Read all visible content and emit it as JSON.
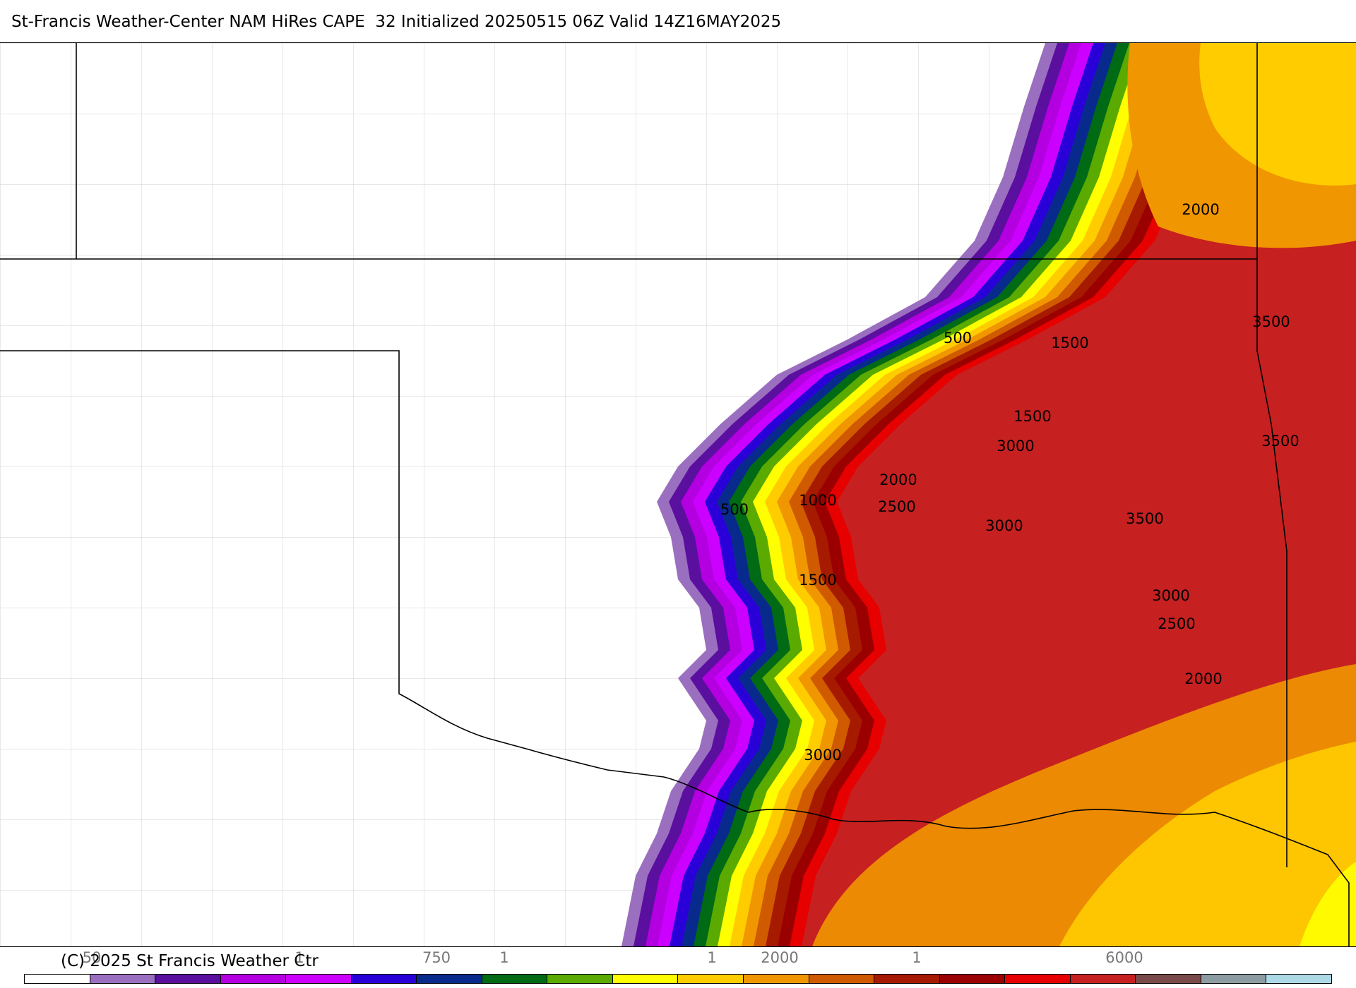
{
  "header": {
    "title": "St-Francis Weather-Center NAM HiRes CAPE  32 Initialized 20250515 06Z Valid 14Z16MAY2025"
  },
  "map": {
    "variable": "CAPE",
    "contour_labels": [
      "2000",
      "3500",
      "500",
      "1500",
      "1500",
      "3000",
      "3500",
      "2000",
      "1000",
      "500",
      "2500",
      "3000",
      "3500",
      "1500",
      "3000",
      "2500",
      "2000",
      "3000"
    ],
    "band_colors": [
      "#9b6fc0",
      "#5a0f9e",
      "#b400e0",
      "#cc00ff",
      "#2a00d8",
      "#082a8c",
      "#006a14",
      "#5aaa00",
      "#ffff00",
      "#ffcc00",
      "#f09600",
      "#d05a00",
      "#a61a00",
      "#9a0000",
      "#e60000",
      "#c62020"
    ]
  },
  "footer": {
    "copyright": "(C) 2025 St Francis Weather Ctr",
    "legend_ticks": [
      "50",
      "1",
      "750",
      "1",
      "1",
      "2000",
      "1",
      "6000"
    ]
  },
  "legend": {
    "colors": [
      "#ffffff",
      "#9b6fc0",
      "#5a0f9e",
      "#b400e0",
      "#cc00ff",
      "#2a00d8",
      "#082a8c",
      "#006a14",
      "#5aaa00",
      "#ffff00",
      "#ffcc00",
      "#f09600",
      "#d05a00",
      "#a61a00",
      "#9a0000",
      "#e60000",
      "#c62020",
      "#7a4a4a",
      "#8c9ca0",
      "#add8e6"
    ]
  }
}
